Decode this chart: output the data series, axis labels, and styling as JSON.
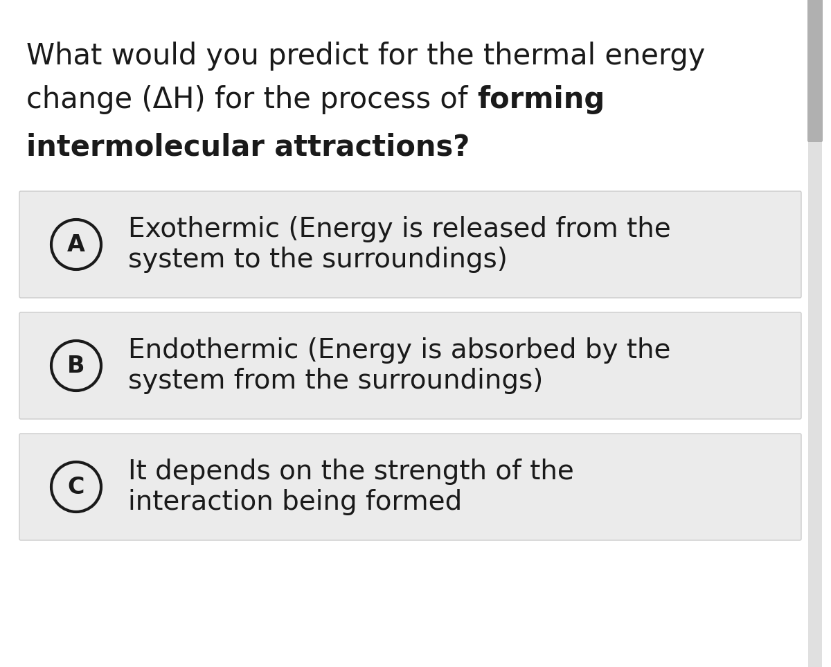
{
  "title_line1": "What would you predict for the thermal energy",
  "title_line2_normal": "change (ΔH) for the process of ",
  "title_line2_bold": "forming",
  "title_line3_bold": "intermolecular attractions?",
  "options": [
    {
      "label": "A",
      "line1": "Exothermic (Energy is released from the",
      "line2": "system to the surroundings)"
    },
    {
      "label": "B",
      "line1": "Endothermic (Energy is absorbed by the",
      "line2": "system from the surroundings)"
    },
    {
      "label": "C",
      "line1": "It depends on the strength of the",
      "line2": "interaction being formed"
    }
  ],
  "bg_color": "#ffffff",
  "option_bg_color": "#ebebeb",
  "option_border_color": "#cccccc",
  "circle_color": "#ebebeb",
  "circle_border_color": "#1a1a1a",
  "text_color": "#1a1a1a",
  "scrollbar_track_color": "#e0e0e0",
  "scrollbar_thumb_color": "#b0b0b0",
  "font_size_title": 30,
  "font_size_option": 28,
  "font_size_label": 24
}
